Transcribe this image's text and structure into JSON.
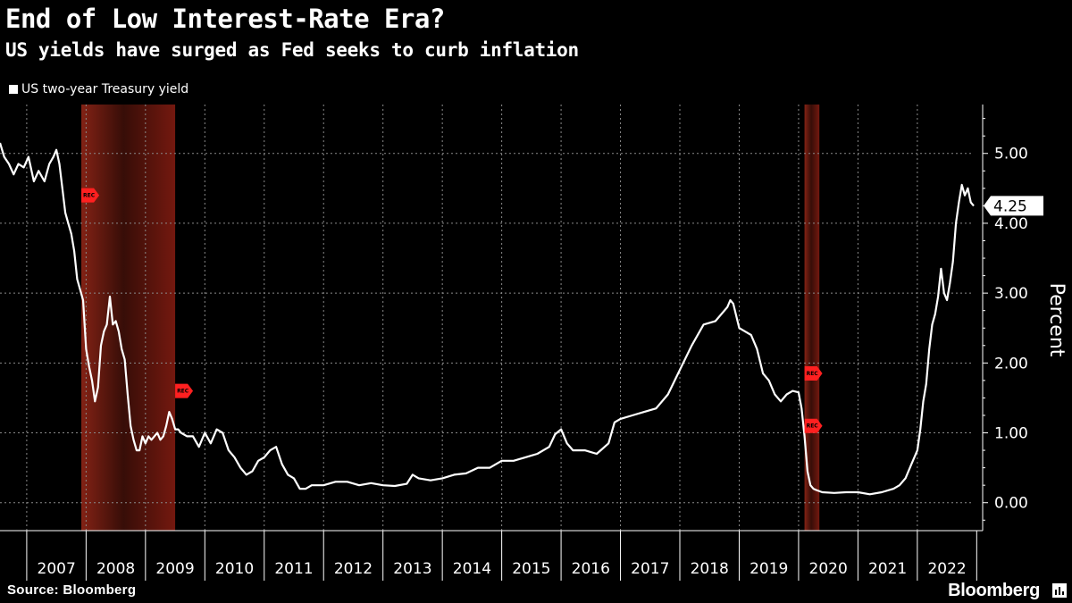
{
  "header": {
    "title": "End of Low Interest-Rate Era?",
    "subtitle": "US yields have surged as Fed seeks to curb inflation"
  },
  "footer": {
    "source": "Source: Bloomberg",
    "brand": "Bloomberg"
  },
  "colors": {
    "background": "#000000",
    "line": "#ffffff",
    "recession_band": "#7a1a10",
    "rec_marker": "#ff2020",
    "grid": "#8a8a8a"
  },
  "chart_data": {
    "type": "line",
    "title": "End of Low Interest-Rate Era?",
    "subtitle": "US yields have surged as Fed seeks to curb inflation",
    "ylabel": "Percent",
    "ylim": [
      -0.4,
      5.7
    ],
    "xlim": [
      2006.55,
      2022.95
    ],
    "yticks": [
      0,
      1,
      2,
      3,
      4,
      5
    ],
    "ytick_labels": [
      "0.00",
      "1.00",
      "2.00",
      "3.00",
      "4.00",
      "5.00"
    ],
    "x_categories": [
      "2007",
      "2008",
      "2009",
      "2010",
      "2011",
      "2012",
      "2013",
      "2014",
      "2015",
      "2016",
      "2017",
      "2018",
      "2019",
      "2020",
      "2021",
      "2022"
    ],
    "grid": true,
    "legend_position": "top-left",
    "last_value_label": "4.25",
    "series": [
      {
        "name": "US two-year Treasury yield",
        "color": "#ffffff",
        "x": [
          2006.55,
          2006.62,
          2006.7,
          2006.78,
          2006.86,
          2006.95,
          2007.03,
          2007.12,
          2007.2,
          2007.3,
          2007.38,
          2007.45,
          2007.5,
          2007.55,
          2007.6,
          2007.65,
          2007.7,
          2007.75,
          2007.8,
          2007.85,
          2007.9,
          2007.95,
          2008.0,
          2008.05,
          2008.1,
          2008.15,
          2008.2,
          2008.25,
          2008.3,
          2008.35,
          2008.4,
          2008.45,
          2008.5,
          2008.55,
          2008.6,
          2008.65,
          2008.7,
          2008.75,
          2008.8,
          2008.85,
          2008.9,
          2008.95,
          2009.0,
          2009.05,
          2009.1,
          2009.15,
          2009.2,
          2009.25,
          2009.3,
          2009.35,
          2009.4,
          2009.45,
          2009.5,
          2009.55,
          2009.6,
          2009.7,
          2009.8,
          2009.9,
          2010.0,
          2010.1,
          2010.2,
          2010.3,
          2010.4,
          2010.5,
          2010.6,
          2010.7,
          2010.8,
          2010.9,
          2011.0,
          2011.1,
          2011.2,
          2011.3,
          2011.4,
          2011.5,
          2011.6,
          2011.7,
          2011.8,
          2011.9,
          2012.0,
          2012.2,
          2012.4,
          2012.6,
          2012.8,
          2013.0,
          2013.2,
          2013.4,
          2013.5,
          2013.6,
          2013.8,
          2014.0,
          2014.2,
          2014.4,
          2014.6,
          2014.8,
          2015.0,
          2015.2,
          2015.4,
          2015.6,
          2015.8,
          2015.9,
          2016.0,
          2016.1,
          2016.2,
          2016.4,
          2016.6,
          2016.8,
          2016.9,
          2017.0,
          2017.2,
          2017.4,
          2017.6,
          2017.8,
          2018.0,
          2018.2,
          2018.4,
          2018.6,
          2018.8,
          2018.85,
          2018.9,
          2019.0,
          2019.1,
          2019.2,
          2019.3,
          2019.4,
          2019.5,
          2019.6,
          2019.7,
          2019.8,
          2019.9,
          2020.0,
          2020.05,
          2020.1,
          2020.15,
          2020.2,
          2020.25,
          2020.3,
          2020.4,
          2020.6,
          2020.8,
          2021.0,
          2021.2,
          2021.4,
          2021.6,
          2021.7,
          2021.8,
          2021.9,
          2022.0,
          2022.05,
          2022.1,
          2022.15,
          2022.2,
          2022.25,
          2022.3,
          2022.35,
          2022.4,
          2022.45,
          2022.5,
          2022.55,
          2022.6,
          2022.65,
          2022.7,
          2022.75,
          2022.8,
          2022.85,
          2022.9,
          2022.95
        ],
        "y": [
          5.15,
          4.95,
          4.85,
          4.7,
          4.85,
          4.8,
          4.95,
          4.6,
          4.75,
          4.6,
          4.85,
          4.95,
          5.05,
          4.85,
          4.5,
          4.15,
          4.0,
          3.85,
          3.6,
          3.2,
          3.05,
          2.9,
          2.2,
          1.95,
          1.75,
          1.45,
          1.65,
          2.25,
          2.45,
          2.55,
          2.95,
          2.55,
          2.6,
          2.45,
          2.2,
          2.05,
          1.55,
          1.1,
          0.9,
          0.75,
          0.75,
          0.95,
          0.85,
          0.95,
          0.9,
          0.95,
          1.0,
          0.9,
          0.95,
          1.1,
          1.3,
          1.2,
          1.05,
          1.05,
          1.0,
          0.95,
          0.95,
          0.8,
          1.0,
          0.85,
          1.05,
          1.0,
          0.75,
          0.65,
          0.5,
          0.4,
          0.45,
          0.6,
          0.65,
          0.75,
          0.8,
          0.55,
          0.4,
          0.35,
          0.2,
          0.2,
          0.25,
          0.25,
          0.25,
          0.3,
          0.3,
          0.25,
          0.28,
          0.25,
          0.24,
          0.27,
          0.4,
          0.35,
          0.32,
          0.35,
          0.4,
          0.42,
          0.5,
          0.5,
          0.6,
          0.6,
          0.65,
          0.7,
          0.8,
          0.98,
          1.05,
          0.85,
          0.75,
          0.75,
          0.7,
          0.85,
          1.15,
          1.2,
          1.25,
          1.3,
          1.35,
          1.55,
          1.9,
          2.25,
          2.55,
          2.6,
          2.8,
          2.9,
          2.85,
          2.5,
          2.45,
          2.4,
          2.2,
          1.85,
          1.75,
          1.55,
          1.45,
          1.55,
          1.6,
          1.58,
          1.35,
          0.95,
          0.45,
          0.25,
          0.2,
          0.18,
          0.15,
          0.14,
          0.15,
          0.15,
          0.12,
          0.15,
          0.2,
          0.25,
          0.35,
          0.55,
          0.75,
          1.05,
          1.45,
          1.7,
          2.2,
          2.55,
          2.7,
          2.95,
          3.35,
          3.0,
          2.9,
          3.15,
          3.45,
          4.0,
          4.3,
          4.55,
          4.4,
          4.5,
          4.3,
          4.25
        ]
      }
    ],
    "recession_bands": [
      {
        "start": 2007.92,
        "end": 2009.5
      },
      {
        "start": 2020.1,
        "end": 2020.35
      }
    ],
    "rec_markers": [
      {
        "x": 2007.92,
        "y": 4.4,
        "label": "REC"
      },
      {
        "x": 2009.5,
        "y": 1.6,
        "label": "REC"
      },
      {
        "x": 2020.1,
        "y": 1.85,
        "label": "REC"
      },
      {
        "x": 2020.1,
        "y": 1.1,
        "label": "REC"
      }
    ]
  }
}
